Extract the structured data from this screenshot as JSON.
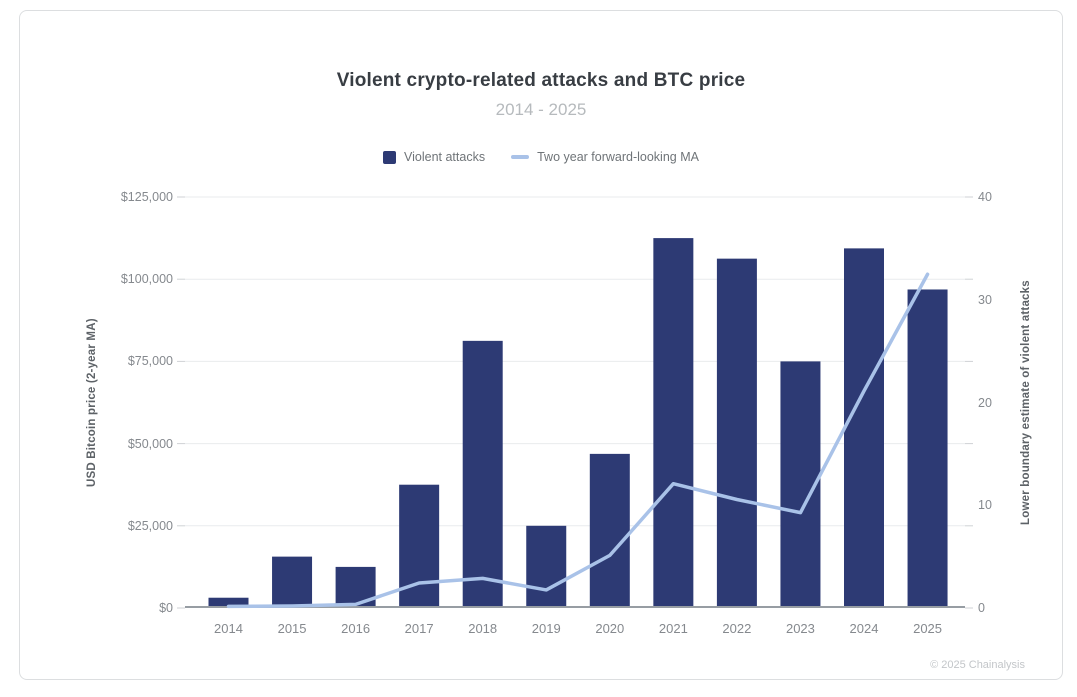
{
  "chart": {
    "title": "Violent crypto-related attacks and BTC price",
    "subtitle": "2014 - 2025",
    "attribution": "© 2025 Chainalysis",
    "left_axis_title": "USD Bitcoin price (2-year MA)",
    "right_axis_title": "Lower boundary estimate of violent attacks"
  },
  "legend": [
    {
      "label": "Violent attacks",
      "type": "square",
      "color": "#2d3a74"
    },
    {
      "label": "Two year forward-looking MA",
      "type": "line",
      "color": "#a9c2e8"
    }
  ],
  "chart_data": {
    "type": "bar",
    "title": "Violent crypto-related attacks and BTC price",
    "subtitle": "2014 - 2025",
    "categories": [
      "2014",
      "2015",
      "2016",
      "2017",
      "2018",
      "2019",
      "2020",
      "2021",
      "2022",
      "2023",
      "2024",
      "2025"
    ],
    "series": [
      {
        "name": "Violent attacks",
        "render": "bar",
        "axis": "right",
        "color": "#2d3a74",
        "values": [
          1,
          5,
          4,
          12,
          26,
          8,
          15,
          36,
          34,
          24,
          35,
          31
        ]
      },
      {
        "name": "Two year forward-looking MA",
        "render": "line",
        "axis": "left",
        "color": "#a9c2e8",
        "values": [
          500,
          600,
          1100,
          7600,
          9000,
          5500,
          16000,
          37800,
          33000,
          29000,
          66000,
          101500
        ]
      }
    ],
    "left_axis": {
      "label": "USD Bitcoin price (2-year MA)",
      "range": [
        0,
        125000
      ],
      "tick_labels_top_down": [
        "$125,000",
        "$100,000",
        "$75,000",
        "$50,000",
        "$25,000",
        "$0"
      ]
    },
    "right_axis": {
      "label": "Lower boundary estimate of violent attacks",
      "range": [
        0,
        40
      ],
      "tick_labels_top_down": [
        "40",
        "30",
        "20",
        "10",
        "0"
      ]
    },
    "grid": "horizontal",
    "legend_position": "top-center",
    "colors": {
      "gridline": "#e9ebed",
      "axis_line": "#979da3",
      "tick_mark": "#cfd2d5"
    }
  }
}
